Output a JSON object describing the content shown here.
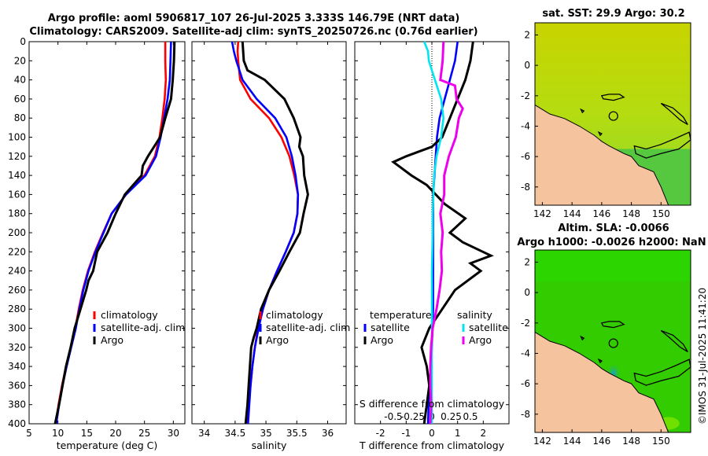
{
  "header": {
    "line1": "Argo profile: aoml 5906817_107 26-Jul-2025 3.333S 146.79E (NRT data)",
    "line2": "Climatology: CARS2009. Satellite-adj clim: synTS_20250726.nc (0.76d earlier)"
  },
  "map_sst": {
    "title": "sat. SST: 29.9 Argo: 30.2"
  },
  "map_sla": {
    "title1": "Altim. SLA: -0.0066",
    "title2": "Argo h1000: -0.0026 h2000: NaN"
  },
  "credit": "©IMOS 31-Jul-2025 11:41:20",
  "colors": {
    "climatology": "#ff0000",
    "satellite": "#0000ff",
    "argo": "#000000",
    "sat_salinity": "#00e5ee",
    "argo_salinity": "#ee00ee",
    "land": "#f5c39e",
    "sea_warm": "#b8d800",
    "sea_green": "#33cc00"
  },
  "chart_data": [
    {
      "type": "line",
      "title": "",
      "xlabel": "temperature (deg C)",
      "ylabel": "",
      "xlim": [
        5,
        32
      ],
      "ylim": [
        400,
        0
      ],
      "xticks": [
        "5",
        "10",
        "15",
        "20",
        "25",
        "30"
      ],
      "yticks": [
        "0",
        "20",
        "40",
        "60",
        "80",
        "100",
        "120",
        "140",
        "160",
        "180",
        "200",
        "220",
        "240",
        "260",
        "280",
        "300",
        "320",
        "340",
        "360",
        "380",
        "400"
      ],
      "legend": [
        "climatology",
        "satellite-adj. clim",
        "Argo"
      ],
      "series": [
        {
          "name": "climatology",
          "color": "#ff0000",
          "depth": [
            0,
            20,
            40,
            60,
            80,
            100,
            120,
            140,
            160,
            180,
            200,
            220,
            240,
            260,
            280,
            300,
            320,
            340,
            360,
            380,
            400
          ],
          "values": [
            28.6,
            28.6,
            28.7,
            28.5,
            28.1,
            27.6,
            26.8,
            25.0,
            21.8,
            19.3,
            17.8,
            16.4,
            15.2,
            14.3,
            13.6,
            13.0,
            12.2,
            11.4,
            10.7,
            10.1,
            9.6
          ]
        },
        {
          "name": "satellite-adj. clim",
          "color": "#0000ff",
          "depth": [
            0,
            20,
            40,
            60,
            80,
            100,
            120,
            140,
            160,
            180,
            200,
            220,
            240,
            260,
            280,
            300,
            320,
            340,
            360,
            380,
            400
          ],
          "values": [
            29.6,
            29.5,
            29.4,
            29.0,
            28.4,
            27.8,
            27.0,
            25.2,
            21.8,
            19.3,
            17.9,
            16.5,
            15.3,
            14.4,
            13.7,
            13.1,
            12.3,
            11.5,
            10.8,
            10.2,
            9.7
          ]
        },
        {
          "name": "Argo",
          "color": "#000000",
          "depth": [
            0,
            20,
            40,
            60,
            80,
            100,
            120,
            130,
            140,
            160,
            180,
            200,
            220,
            240,
            250,
            260,
            280,
            300,
            320,
            340,
            360,
            380,
            400
          ],
          "values": [
            30.2,
            30.1,
            29.9,
            29.6,
            28.6,
            27.7,
            25.6,
            24.7,
            24.5,
            21.6,
            20.0,
            18.6,
            16.8,
            16.1,
            15.3,
            14.9,
            13.9,
            12.9,
            12.2,
            11.4,
            10.8,
            10.2,
            9.5
          ]
        }
      ]
    },
    {
      "type": "line",
      "xlabel": "salinity",
      "xlim": [
        33.8,
        36.3
      ],
      "ylim": [
        400,
        0
      ],
      "xticks": [
        "34",
        "34.5",
        "35",
        "35.5",
        "36"
      ],
      "legend": [
        "climatology",
        "satellite-adj. clim",
        "Argo"
      ],
      "series": [
        {
          "name": "climatology",
          "color": "#ff0000",
          "depth": [
            0,
            10,
            20,
            40,
            60,
            80,
            100,
            120,
            140,
            160,
            180,
            200,
            220,
            240,
            260,
            280,
            300,
            320,
            340,
            360,
            380,
            400
          ],
          "values": [
            34.55,
            34.54,
            34.55,
            34.58,
            34.75,
            35.05,
            35.25,
            35.38,
            35.46,
            35.52,
            35.51,
            35.45,
            35.32,
            35.18,
            35.05,
            34.95,
            34.87,
            34.82,
            34.78,
            34.75,
            34.72,
            34.7
          ]
        },
        {
          "name": "satellite-adj. clim",
          "color": "#0000ff",
          "depth": [
            0,
            10,
            20,
            40,
            60,
            80,
            100,
            120,
            140,
            160,
            180,
            200,
            220,
            240,
            260,
            280,
            300,
            320,
            340,
            360,
            380,
            400
          ],
          "values": [
            34.45,
            34.48,
            34.52,
            34.62,
            34.85,
            35.15,
            35.33,
            35.42,
            35.48,
            35.52,
            35.51,
            35.45,
            35.32,
            35.18,
            35.05,
            34.95,
            34.88,
            34.82,
            34.78,
            34.75,
            34.73,
            34.71
          ]
        },
        {
          "name": "Argo",
          "color": "#000000",
          "depth": [
            0,
            20,
            30,
            40,
            60,
            80,
            100,
            110,
            120,
            140,
            160,
            180,
            200,
            220,
            240,
            260,
            280,
            300,
            310,
            320,
            340,
            360,
            380,
            400
          ],
          "values": [
            34.62,
            34.64,
            34.7,
            34.98,
            35.3,
            35.45,
            35.56,
            35.54,
            35.6,
            35.62,
            35.68,
            35.61,
            35.55,
            35.38,
            35.22,
            35.05,
            34.92,
            34.85,
            34.8,
            34.76,
            34.74,
            34.72,
            34.7,
            34.67
          ]
        }
      ]
    },
    {
      "type": "line",
      "xlabel": "T difference from climatology",
      "xlabel2": "S difference from climatology",
      "xlim": [
        -3,
        3
      ],
      "ylim": [
        400,
        0
      ],
      "xticks": [
        "-2",
        "-1",
        "0",
        "1",
        "2"
      ],
      "xticks2": [
        "-0.5",
        "-0.25",
        "0",
        "0.25",
        "0.5"
      ],
      "legend_left_title": "temperature",
      "legend_right_title": "salinity",
      "legend_left": [
        "satellite",
        "Argo"
      ],
      "legend_right": [
        "satellite",
        "Argo"
      ],
      "series": [
        {
          "name": "temperature satellite",
          "color": "#0000ff",
          "depth": [
            0,
            20,
            40,
            60,
            80,
            100,
            120,
            140,
            160,
            180,
            200,
            240,
            280,
            320,
            360,
            400
          ],
          "values": [
            1.0,
            0.9,
            0.7,
            0.5,
            0.3,
            0.2,
            0.15,
            0.1,
            0.05,
            0.05,
            0.05,
            0.05,
            0.05,
            0.0,
            -0.1,
            -0.15
          ]
        },
        {
          "name": "temperature Argo",
          "color": "#000000",
          "depth": [
            0,
            20,
            40,
            60,
            80,
            100,
            110,
            120,
            126,
            140,
            150,
            170,
            185,
            200,
            210,
            224,
            232,
            240,
            260,
            280,
            300,
            320,
            340,
            360,
            380,
            400
          ],
          "values": [
            1.6,
            1.5,
            1.3,
            1.0,
            0.7,
            0.4,
            0.0,
            -1.0,
            -1.5,
            -0.8,
            -0.2,
            0.5,
            1.3,
            0.7,
            1.2,
            2.3,
            1.5,
            1.9,
            0.9,
            0.4,
            -0.1,
            -0.4,
            -0.2,
            -0.1,
            -0.2,
            -0.3
          ]
        },
        {
          "name": "salinity satellite",
          "color": "#00e5ee",
          "depth": [
            0,
            10,
            20,
            40,
            60,
            80,
            100,
            120,
            140,
            160,
            180,
            200,
            240,
            280,
            320,
            360,
            400
          ],
          "values": [
            -0.1,
            -0.05,
            -0.04,
            0.04,
            0.12,
            0.15,
            0.12,
            0.06,
            0.03,
            0.02,
            0.01,
            0.01,
            0.0,
            0.0,
            0.0,
            0.0,
            0.0
          ]
        },
        {
          "name": "salinity Argo",
          "color": "#ee00ee",
          "depth": [
            0,
            20,
            40,
            46,
            60,
            70,
            80,
            100,
            120,
            140,
            160,
            180,
            200,
            220,
            240,
            260,
            280,
            300,
            320,
            340,
            360,
            380,
            400
          ],
          "values": [
            0.15,
            0.14,
            0.11,
            0.3,
            0.32,
            0.4,
            0.35,
            0.31,
            0.22,
            0.16,
            0.16,
            0.11,
            0.14,
            0.12,
            0.13,
            0.1,
            0.06,
            0.01,
            -0.01,
            -0.02,
            -0.02,
            -0.01,
            -0.02
          ]
        }
      ]
    },
    {
      "type": "heatmap",
      "title": "sat. SST: 29.9 Argo: 30.2",
      "xlim": [
        141.5,
        152
      ],
      "ylim": [
        -9.2,
        2.8
      ],
      "xticks": [
        "142",
        "144",
        "146",
        "148",
        "150"
      ],
      "yticks": [
        "2",
        "0",
        "-2",
        "-4",
        "-6",
        "-8"
      ],
      "argo_position": [
        146.79,
        -3.333
      ]
    },
    {
      "type": "heatmap",
      "title": "Altim. SLA: -0.0066 / Argo h1000: -0.0026 h2000: NaN",
      "xlim": [
        141.5,
        152
      ],
      "ylim": [
        -9.2,
        2.8
      ],
      "xticks": [
        "142",
        "144",
        "146",
        "148",
        "150"
      ],
      "yticks": [
        "2",
        "0",
        "-2",
        "-4",
        "-6",
        "-8"
      ],
      "argo_position": [
        146.79,
        -3.333
      ]
    }
  ]
}
